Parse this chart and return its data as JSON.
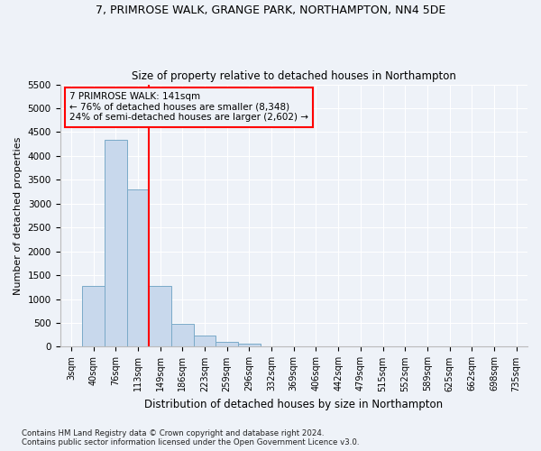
{
  "title1": "7, PRIMROSE WALK, GRANGE PARK, NORTHAMPTON, NN4 5DE",
  "title2": "Size of property relative to detached houses in Northampton",
  "xlabel": "Distribution of detached houses by size in Northampton",
  "ylabel": "Number of detached properties",
  "footnote": "Contains HM Land Registry data © Crown copyright and database right 2024.\nContains public sector information licensed under the Open Government Licence v3.0.",
  "bin_labels": [
    "3sqm",
    "40sqm",
    "76sqm",
    "113sqm",
    "149sqm",
    "186sqm",
    "223sqm",
    "259sqm",
    "296sqm",
    "332sqm",
    "369sqm",
    "406sqm",
    "442sqm",
    "479sqm",
    "515sqm",
    "552sqm",
    "589sqm",
    "625sqm",
    "662sqm",
    "698sqm",
    "735sqm"
  ],
  "bar_values": [
    0,
    1270,
    4340,
    3300,
    1280,
    480,
    240,
    100,
    65,
    0,
    0,
    0,
    0,
    0,
    0,
    0,
    0,
    0,
    0,
    0,
    0
  ],
  "bar_color": "#c8d8ec",
  "bar_edge_color": "#7aaac8",
  "vline_color": "red",
  "vline_x": 3.5,
  "annotation_text": "7 PRIMROSE WALK: 141sqm\n← 76% of detached houses are smaller (8,348)\n24% of semi-detached houses are larger (2,602) →",
  "annotation_box_color": "red",
  "bg_color": "#eef2f8",
  "grid_color": "#ffffff",
  "ylim": [
    0,
    5500
  ],
  "yticks": [
    0,
    500,
    1000,
    1500,
    2000,
    2500,
    3000,
    3500,
    4000,
    4500,
    5000,
    5500
  ]
}
